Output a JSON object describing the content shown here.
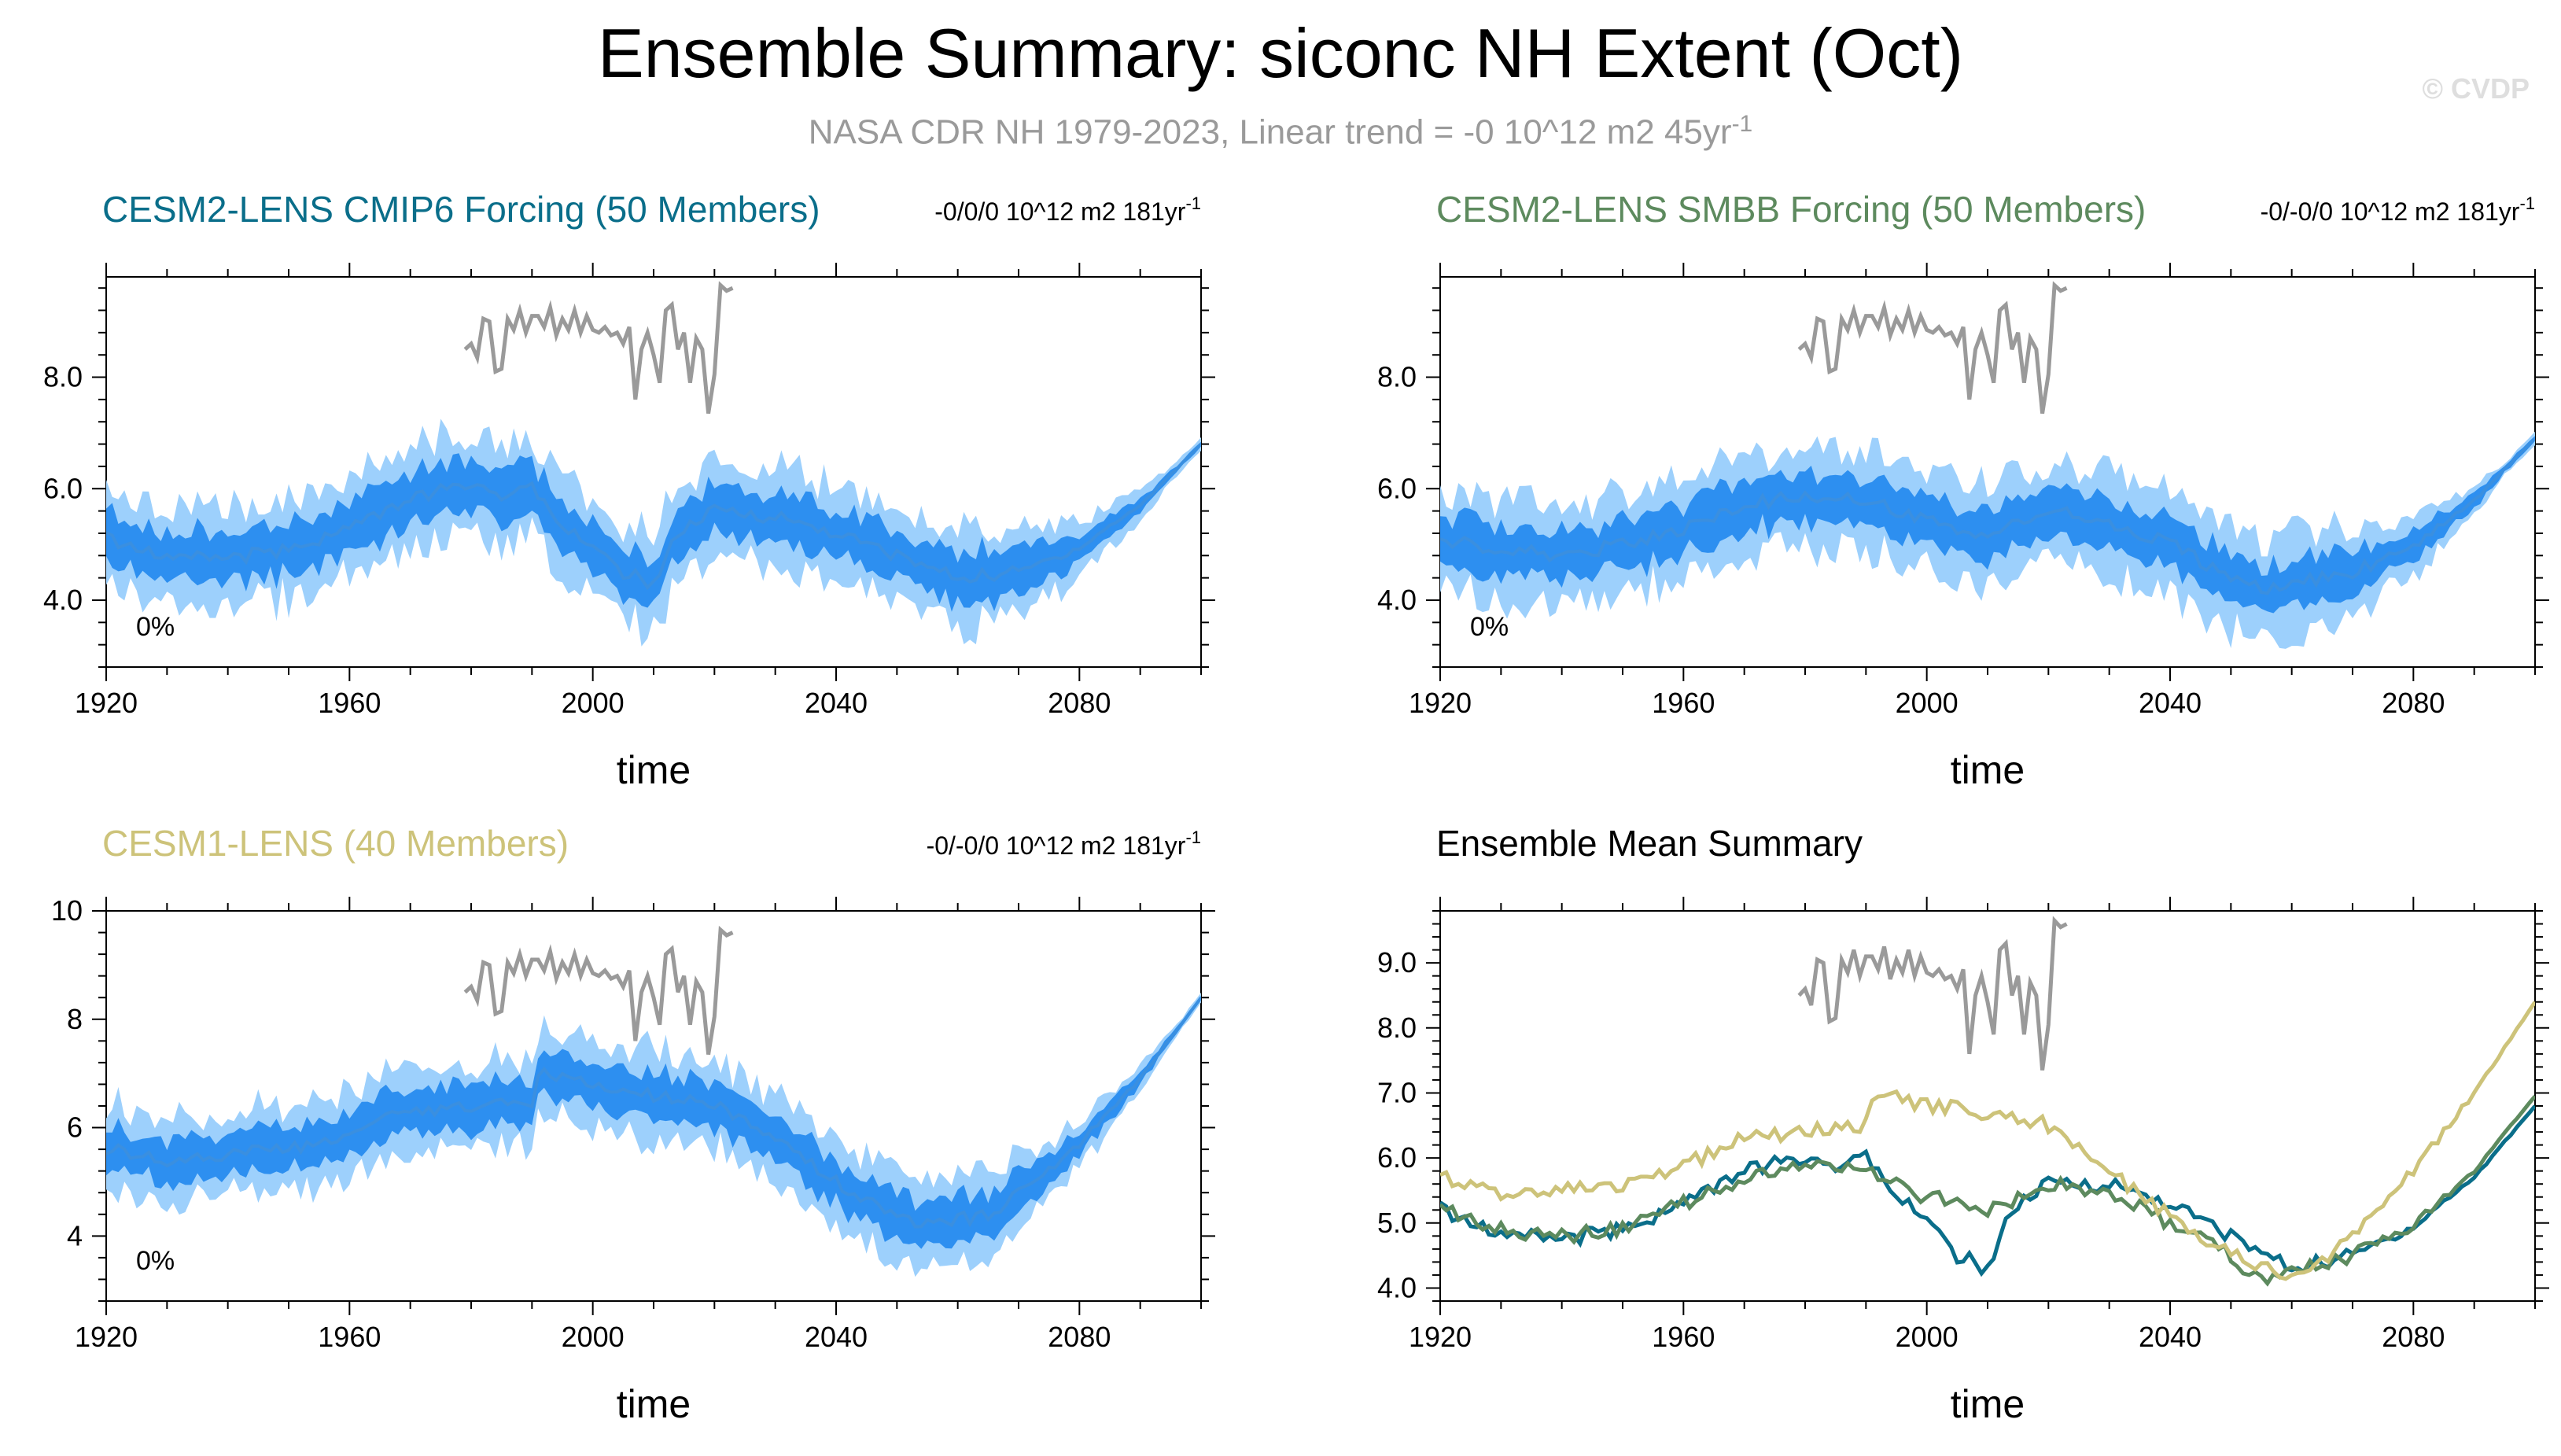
{
  "title": "Ensemble Summary: siconc NH Extent (Oct)",
  "subtitle": {
    "text": "NASA CDR NH 1979-2023, Linear trend = -0 10^12 m2 45yr",
    "sup": "-1"
  },
  "copyright": "© CVDP",
  "colors": {
    "cmip6": "#0a6e8a",
    "smbb": "#5d8a5e",
    "lens1": "#cdc37a",
    "obs": "#9a9a9a",
    "spread_outer": "#9dd0fc",
    "spread_inner": "#2d8ff0",
    "mean_line": "#3a8fe0",
    "summary_title": "#000000"
  },
  "chart_data": [
    {
      "type": "area",
      "id": "cmip6",
      "title": "CESM2-LENS CMIP6 Forcing (50 Members)",
      "trend": {
        "text": "-0/0/0 10^12 m2 181yr",
        "sup": "-1"
      },
      "percent": "0%",
      "xlabel": "time",
      "xlim": [
        1920,
        2100
      ],
      "ylim": [
        2.8,
        9.8
      ],
      "xticks": [
        1920,
        1960,
        2000,
        2040,
        2080
      ],
      "yticks": [
        4.0,
        6.0,
        8.0
      ],
      "ytick_labels": [
        "4.0",
        "6.0",
        "8.0"
      ],
      "ensemble_mean_anchors": [
        [
          1920,
          5.1
        ],
        [
          1930,
          4.8
        ],
        [
          1940,
          4.75
        ],
        [
          1950,
          4.9
        ],
        [
          1960,
          5.3
        ],
        [
          1970,
          5.8
        ],
        [
          1980,
          6.1
        ],
        [
          1985,
          5.9
        ],
        [
          1990,
          6.0
        ],
        [
          1995,
          5.4
        ],
        [
          2000,
          4.9
        ],
        [
          2005,
          4.5
        ],
        [
          2010,
          4.3
        ],
        [
          2014,
          5.2
        ],
        [
          2020,
          5.6
        ],
        [
          2030,
          5.5
        ],
        [
          2040,
          5.2
        ],
        [
          2050,
          4.8
        ],
        [
          2060,
          4.4
        ],
        [
          2070,
          4.5
        ],
        [
          2080,
          4.95
        ],
        [
          2090,
          5.7
        ],
        [
          2100,
          6.8
        ]
      ],
      "spread_inner_halfwidth": 0.45,
      "spread_outer_halfwidth": 0.9
    },
    {
      "type": "area",
      "id": "smbb",
      "title": "CESM2-LENS SMBB Forcing (50 Members)",
      "trend": {
        "text": "-0/-0/0 10^12 m2 181yr",
        "sup": "-1"
      },
      "percent": "0%",
      "xlabel": "time",
      "xlim": [
        1920,
        2100
      ],
      "ylim": [
        2.8,
        9.8
      ],
      "xticks": [
        1920,
        1960,
        2000,
        2040,
        2080
      ],
      "yticks": [
        4.0,
        6.0,
        8.0
      ],
      "ytick_labels": [
        "4.0",
        "6.0",
        "8.0"
      ],
      "ensemble_mean_anchors": [
        [
          1920,
          5.1
        ],
        [
          1930,
          4.9
        ],
        [
          1940,
          4.8
        ],
        [
          1950,
          5.0
        ],
        [
          1960,
          5.3
        ],
        [
          1970,
          5.7
        ],
        [
          1980,
          5.9
        ],
        [
          1990,
          5.8
        ],
        [
          2000,
          5.4
        ],
        [
          2010,
          5.2
        ],
        [
          2020,
          5.6
        ],
        [
          2030,
          5.4
        ],
        [
          2040,
          5.0
        ],
        [
          2050,
          4.4
        ],
        [
          2055,
          4.2
        ],
        [
          2060,
          4.3
        ],
        [
          2070,
          4.5
        ],
        [
          2080,
          4.95
        ],
        [
          2090,
          5.8
        ],
        [
          2100,
          6.9
        ]
      ],
      "spread_inner_halfwidth": 0.45,
      "spread_outer_halfwidth": 0.9
    },
    {
      "type": "area",
      "id": "lens1",
      "title": "CESM1-LENS (40 Members)",
      "trend": {
        "text": "-0/-0/0 10^12 m2 181yr",
        "sup": "-1"
      },
      "percent": "0%",
      "xlabel": "time",
      "xlim": [
        1920,
        2100
      ],
      "ylim": [
        2.8,
        10.0
      ],
      "xticks": [
        1920,
        1960,
        2000,
        2040,
        2080
      ],
      "yticks": [
        4,
        6,
        8,
        10
      ],
      "ytick_labels": [
        "4",
        "6",
        "8",
        "10"
      ],
      "ensemble_mean_anchors": [
        [
          1920,
          5.6
        ],
        [
          1930,
          5.4
        ],
        [
          1940,
          5.5
        ],
        [
          1950,
          5.6
        ],
        [
          1960,
          5.9
        ],
        [
          1970,
          6.3
        ],
        [
          1980,
          6.4
        ],
        [
          1990,
          6.5
        ],
        [
          1991,
          7.0
        ],
        [
          2000,
          6.8
        ],
        [
          2010,
          6.6
        ],
        [
          2020,
          6.4
        ],
        [
          2030,
          5.8
        ],
        [
          2040,
          5.0
        ],
        [
          2050,
          4.4
        ],
        [
          2055,
          4.2
        ],
        [
          2060,
          4.3
        ],
        [
          2065,
          4.4
        ],
        [
          2070,
          4.8
        ],
        [
          2080,
          5.7
        ],
        [
          2090,
          6.9
        ],
        [
          2100,
          8.4
        ]
      ],
      "spread_inner_halfwidth": 0.4,
      "spread_outer_halfwidth": 0.8
    },
    {
      "type": "line",
      "id": "summary",
      "title": "Ensemble Mean Summary",
      "xlabel": "time",
      "xlim": [
        1920,
        2100
      ],
      "ylim": [
        3.8,
        9.8
      ],
      "xticks": [
        1920,
        1960,
        2000,
        2040,
        2080
      ],
      "yticks": [
        4.0,
        5.0,
        6.0,
        7.0,
        8.0,
        9.0
      ],
      "ytick_labels": [
        "4.0",
        "5.0",
        "6.0",
        "7.0",
        "8.0",
        "9.0"
      ],
      "series": [
        {
          "name": "CESM2-LENS CMIP6 Forcing",
          "color_key": "cmip6",
          "anchors": [
            [
              1920,
              5.2
            ],
            [
              1930,
              4.85
            ],
            [
              1940,
              4.75
            ],
            [
              1950,
              4.9
            ],
            [
              1960,
              5.3
            ],
            [
              1970,
              5.8
            ],
            [
              1980,
              6.0
            ],
            [
              1985,
              5.9
            ],
            [
              1990,
              6.0
            ],
            [
              1995,
              5.5
            ],
            [
              2000,
              5.0
            ],
            [
              2005,
              4.5
            ],
            [
              2010,
              4.3
            ],
            [
              2014,
              5.2
            ],
            [
              2020,
              5.6
            ],
            [
              2030,
              5.6
            ],
            [
              2040,
              5.3
            ],
            [
              2050,
              4.8
            ],
            [
              2060,
              4.3
            ],
            [
              2070,
              4.5
            ],
            [
              2080,
              4.95
            ],
            [
              2090,
              5.7
            ],
            [
              2100,
              6.8
            ]
          ]
        },
        {
          "name": "CESM2-LENS SMBB Forcing",
          "color_key": "smbb",
          "anchors": [
            [
              1920,
              5.2
            ],
            [
              1930,
              4.9
            ],
            [
              1940,
              4.8
            ],
            [
              1950,
              4.9
            ],
            [
              1960,
              5.3
            ],
            [
              1970,
              5.7
            ],
            [
              1980,
              5.9
            ],
            [
              1990,
              5.8
            ],
            [
              2000,
              5.4
            ],
            [
              2010,
              5.2
            ],
            [
              2020,
              5.6
            ],
            [
              2030,
              5.5
            ],
            [
              2040,
              5.0
            ],
            [
              2050,
              4.5
            ],
            [
              2055,
              4.1
            ],
            [
              2060,
              4.3
            ],
            [
              2070,
              4.5
            ],
            [
              2080,
              4.95
            ],
            [
              2090,
              5.8
            ],
            [
              2100,
              6.95
            ]
          ]
        },
        {
          "name": "CESM1-LENS",
          "color_key": "lens1",
          "anchors": [
            [
              1920,
              5.7
            ],
            [
              1930,
              5.4
            ],
            [
              1940,
              5.5
            ],
            [
              1950,
              5.6
            ],
            [
              1960,
              5.9
            ],
            [
              1970,
              6.3
            ],
            [
              1980,
              6.4
            ],
            [
              1990,
              6.5
            ],
            [
              1991,
              7.0
            ],
            [
              2000,
              6.8
            ],
            [
              2010,
              6.7
            ],
            [
              2020,
              6.5
            ],
            [
              2030,
              5.8
            ],
            [
              2040,
              5.1
            ],
            [
              2050,
              4.5
            ],
            [
              2055,
              4.3
            ],
            [
              2060,
              4.2
            ],
            [
              2065,
              4.4
            ],
            [
              2070,
              4.8
            ],
            [
              2080,
              5.8
            ],
            [
              2090,
              7.0
            ],
            [
              2100,
              8.4
            ]
          ]
        }
      ]
    }
  ],
  "observations": {
    "name": "NASA CDR NH 1979-2023",
    "years": [
      1979,
      1980,
      1981,
      1982,
      1983,
      1984,
      1985,
      1986,
      1987,
      1988,
      1989,
      1990,
      1991,
      1992,
      1993,
      1994,
      1995,
      1996,
      1997,
      1998,
      1999,
      2000,
      2001,
      2002,
      2003,
      2004,
      2005,
      2006,
      2007,
      2008,
      2009,
      2010,
      2011,
      2012,
      2013,
      2014,
      2015,
      2016,
      2017,
      2018,
      2019,
      2020,
      2021,
      2022,
      2023
    ],
    "values": [
      8.5,
      8.6,
      8.35,
      9.05,
      9.0,
      8.1,
      8.15,
      9.05,
      8.85,
      9.2,
      8.8,
      9.1,
      9.1,
      8.9,
      9.25,
      8.75,
      9.05,
      8.85,
      9.2,
      8.8,
      9.1,
      8.85,
      8.8,
      8.9,
      8.75,
      8.8,
      8.6,
      8.9,
      7.6,
      8.5,
      8.8,
      8.4,
      7.9,
      9.2,
      9.3,
      8.5,
      8.8,
      7.9,
      8.7,
      8.5,
      7.35,
      8.05,
      9.65,
      9.55,
      9.6
    ]
  }
}
